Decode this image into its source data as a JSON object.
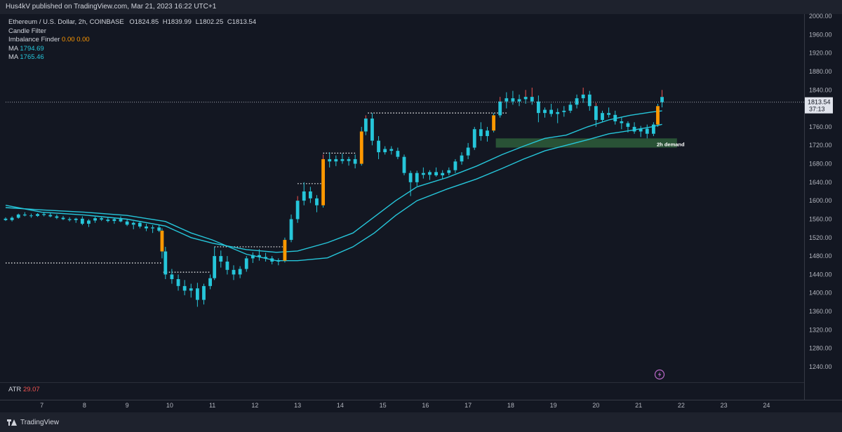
{
  "header": {
    "publish_line": "Hus4kV published on TradingView.com, Mar 21, 2023 16:22 UTC+1"
  },
  "legend": {
    "symbol": "Ethereum / U.S. Dollar, 2h, COINBASE",
    "ohlc": {
      "o_label": "O",
      "o": "1824.85",
      "h_label": "H",
      "h": "1839.99",
      "l_label": "L",
      "l": "1802.25",
      "c_label": "C",
      "c": "1813.54"
    },
    "candle_filter": "Candle Filter",
    "imbalance_finder": {
      "label": "Imbalance Finder",
      "v1": "0.00",
      "v2": "0.00"
    },
    "ma1": {
      "label": "MA",
      "value": "1794.69"
    },
    "ma2": {
      "label": "MA",
      "value": "1765.46"
    }
  },
  "atr": {
    "label": "ATR",
    "value": "29.07"
  },
  "price_tag": {
    "price": "1813.54",
    "countdown": "37:13"
  },
  "zone_label": "2h demand",
  "footer": {
    "brand": "TradingView"
  },
  "colors": {
    "up": "#26c6da",
    "down": "#26c6da",
    "wick_up": "#26c6da",
    "red_wick": "#ef5350",
    "filter": "#ff9800",
    "ma": "#26c6da",
    "zone": "#2e5d3a",
    "bg": "#131722"
  },
  "icons": {
    "alert": "lightning-icon"
  },
  "chart_data": {
    "type": "candlestick",
    "y_ticks": [
      1240,
      1280,
      1320,
      1360,
      1400,
      1440,
      1480,
      1520,
      1560,
      1600,
      1640,
      1680,
      1720,
      1760,
      1800,
      1840,
      1880,
      1920,
      1960,
      2000
    ],
    "y_range": [
      1205,
      2005
    ],
    "x_ticks": [
      "7",
      "8",
      "9",
      "10",
      "11",
      "12",
      "13",
      "14",
      "15",
      "16",
      "17",
      "18",
      "19",
      "20",
      "21",
      "22",
      "23",
      "24"
    ],
    "x_range": [
      6.15,
      25.0
    ],
    "last_price": 1813.54,
    "demand_zone": {
      "label": "2h demand",
      "x_start": 17.65,
      "x_end": 21.9,
      "y_low": 1715,
      "y_high": 1735
    },
    "imbalance_lines": [
      {
        "x_start": 6.15,
        "x_end": 9.8,
        "y": 1465
      },
      {
        "x_start": 9.85,
        "x_end": 10.95,
        "y": 1445
      },
      {
        "x_start": 11.05,
        "x_end": 12.65,
        "y": 1500
      },
      {
        "x_start": 13.0,
        "x_end": 13.55,
        "y": 1637
      },
      {
        "x_start": 13.6,
        "x_end": 14.35,
        "y": 1703
      },
      {
        "x_start": 14.65,
        "x_end": 17.9,
        "y": 1790
      }
    ],
    "ma_fast": [
      [
        6.15,
        1590
      ],
      [
        7,
        1575
      ],
      [
        8,
        1569
      ],
      [
        9,
        1560
      ],
      [
        9.9,
        1545
      ],
      [
        10.5,
        1520
      ],
      [
        11,
        1508
      ],
      [
        11.8,
        1494
      ],
      [
        12.5,
        1488
      ],
      [
        13,
        1491
      ],
      [
        13.7,
        1509
      ],
      [
        14.3,
        1530
      ],
      [
        14.8,
        1565
      ],
      [
        15.3,
        1600
      ],
      [
        15.8,
        1630
      ],
      [
        16.5,
        1650
      ],
      [
        17.2,
        1675
      ],
      [
        17.8,
        1700
      ],
      [
        18.3,
        1718
      ],
      [
        18.8,
        1735
      ],
      [
        19.3,
        1742
      ],
      [
        19.8,
        1760
      ],
      [
        20.3,
        1775
      ],
      [
        20.8,
        1785
      ],
      [
        21.3,
        1792
      ],
      [
        21.55,
        1794.69
      ]
    ],
    "ma_slow": [
      [
        6.15,
        1585
      ],
      [
        7,
        1580
      ],
      [
        8,
        1575
      ],
      [
        9,
        1568
      ],
      [
        9.9,
        1555
      ],
      [
        10.5,
        1530
      ],
      [
        11,
        1515
      ],
      [
        11.8,
        1484
      ],
      [
        12.5,
        1470
      ],
      [
        13,
        1470
      ],
      [
        13.7,
        1476
      ],
      [
        14.3,
        1500
      ],
      [
        14.8,
        1530
      ],
      [
        15.3,
        1568
      ],
      [
        15.8,
        1600
      ],
      [
        16.5,
        1625
      ],
      [
        17.2,
        1647
      ],
      [
        17.8,
        1670
      ],
      [
        18.3,
        1690
      ],
      [
        18.8,
        1708
      ],
      [
        19.3,
        1720
      ],
      [
        19.8,
        1732
      ],
      [
        20.3,
        1745
      ],
      [
        20.8,
        1752
      ],
      [
        21.3,
        1760
      ],
      [
        21.55,
        1765.46
      ]
    ],
    "candles": [
      [
        6.15,
        1561,
        1564,
        1556,
        1558
      ],
      [
        6.3,
        1558,
        1566,
        1555,
        1563
      ],
      [
        6.45,
        1563,
        1572,
        1561,
        1570
      ],
      [
        6.6,
        1570,
        1575,
        1566,
        1568
      ],
      [
        6.75,
        1568,
        1572,
        1563,
        1567
      ],
      [
        6.9,
        1567,
        1573,
        1565,
        1571
      ],
      [
        7.05,
        1571,
        1574,
        1566,
        1569
      ],
      [
        7.2,
        1569,
        1573,
        1564,
        1566
      ],
      [
        7.35,
        1566,
        1570,
        1560,
        1563
      ],
      [
        7.5,
        1563,
        1567,
        1558,
        1560
      ],
      [
        7.65,
        1560,
        1564,
        1555,
        1558
      ],
      [
        7.8,
        1558,
        1563,
        1552,
        1561
      ],
      [
        7.95,
        1561,
        1566,
        1547,
        1550
      ],
      [
        8.1,
        1550,
        1560,
        1543,
        1557
      ],
      [
        8.25,
        1557,
        1565,
        1552,
        1562
      ],
      [
        8.4,
        1562,
        1566,
        1556,
        1559
      ],
      [
        8.55,
        1559,
        1563,
        1553,
        1556
      ],
      [
        8.7,
        1556,
        1562,
        1550,
        1560
      ],
      [
        8.85,
        1560,
        1566,
        1553,
        1555
      ],
      [
        9.0,
        1555,
        1560,
        1545,
        1548
      ],
      [
        9.15,
        1548,
        1555,
        1538,
        1552
      ],
      [
        9.3,
        1552,
        1556,
        1540,
        1544
      ],
      [
        9.45,
        1544,
        1550,
        1534,
        1540
      ],
      [
        9.6,
        1540,
        1547,
        1530,
        1542
      ],
      [
        9.75,
        1542,
        1548,
        1532,
        1535
      ],
      [
        9.82,
        1535,
        1540,
        1475,
        1490
      ],
      [
        9.9,
        1490,
        1500,
        1430,
        1440
      ],
      [
        10.05,
        1440,
        1452,
        1420,
        1430
      ],
      [
        10.2,
        1430,
        1440,
        1405,
        1415
      ],
      [
        10.35,
        1415,
        1428,
        1395,
        1405
      ],
      [
        10.5,
        1405,
        1420,
        1390,
        1410
      ],
      [
        10.65,
        1410,
        1422,
        1370,
        1385
      ],
      [
        10.8,
        1385,
        1420,
        1375,
        1415
      ],
      [
        10.95,
        1415,
        1440,
        1408,
        1432
      ],
      [
        11.05,
        1432,
        1500,
        1428,
        1480
      ],
      [
        11.2,
        1480,
        1492,
        1455,
        1468
      ],
      [
        11.35,
        1468,
        1480,
        1440,
        1450
      ],
      [
        11.5,
        1450,
        1460,
        1428,
        1440
      ],
      [
        11.65,
        1440,
        1458,
        1432,
        1452
      ],
      [
        11.8,
        1452,
        1480,
        1446,
        1475
      ],
      [
        11.95,
        1475,
        1488,
        1465,
        1482
      ],
      [
        12.1,
        1482,
        1495,
        1470,
        1478
      ],
      [
        12.25,
        1478,
        1487,
        1468,
        1475
      ],
      [
        12.4,
        1475,
        1480,
        1462,
        1468
      ],
      [
        12.55,
        1468,
        1475,
        1460,
        1470
      ],
      [
        12.7,
        1470,
        1520,
        1466,
        1515
      ],
      [
        12.85,
        1515,
        1570,
        1510,
        1560
      ],
      [
        13.0,
        1560,
        1610,
        1552,
        1600
      ],
      [
        13.15,
        1600,
        1640,
        1590,
        1620
      ],
      [
        13.3,
        1620,
        1630,
        1595,
        1605
      ],
      [
        13.45,
        1605,
        1612,
        1575,
        1590
      ],
      [
        13.6,
        1590,
        1700,
        1585,
        1690
      ],
      [
        13.75,
        1690,
        1705,
        1672,
        1685
      ],
      [
        13.9,
        1685,
        1698,
        1675,
        1690
      ],
      [
        14.05,
        1690,
        1702,
        1680,
        1686
      ],
      [
        14.2,
        1686,
        1695,
        1676,
        1690
      ],
      [
        14.35,
        1690,
        1700,
        1670,
        1680
      ],
      [
        14.5,
        1680,
        1760,
        1676,
        1750
      ],
      [
        14.6,
        1750,
        1785,
        1742,
        1778
      ],
      [
        14.75,
        1778,
        1790,
        1720,
        1730
      ],
      [
        14.9,
        1730,
        1740,
        1690,
        1705
      ],
      [
        15.05,
        1705,
        1718,
        1700,
        1712
      ],
      [
        15.2,
        1712,
        1718,
        1700,
        1708
      ],
      [
        15.35,
        1708,
        1715,
        1690,
        1695
      ],
      [
        15.5,
        1695,
        1700,
        1655,
        1660
      ],
      [
        15.65,
        1660,
        1665,
        1610,
        1640
      ],
      [
        15.8,
        1640,
        1665,
        1632,
        1660
      ],
      [
        15.95,
        1660,
        1672,
        1648,
        1656
      ],
      [
        16.1,
        1656,
        1666,
        1645,
        1662
      ],
      [
        16.25,
        1662,
        1672,
        1652,
        1655
      ],
      [
        16.4,
        1655,
        1666,
        1646,
        1660
      ],
      [
        16.55,
        1660,
        1672,
        1655,
        1666
      ],
      [
        16.7,
        1666,
        1690,
        1660,
        1685
      ],
      [
        16.85,
        1685,
        1705,
        1678,
        1698
      ],
      [
        17.0,
        1698,
        1725,
        1690,
        1715
      ],
      [
        17.15,
        1715,
        1760,
        1710,
        1755
      ],
      [
        17.3,
        1755,
        1770,
        1730,
        1740
      ],
      [
        17.45,
        1740,
        1760,
        1728,
        1752
      ],
      [
        17.6,
        1752,
        1790,
        1748,
        1785
      ],
      [
        17.75,
        1785,
        1825,
        1780,
        1815
      ],
      [
        17.9,
        1815,
        1835,
        1800,
        1822
      ],
      [
        18.05,
        1822,
        1838,
        1808,
        1815
      ],
      [
        18.2,
        1815,
        1830,
        1805,
        1820
      ],
      [
        18.35,
        1820,
        1840,
        1810,
        1825
      ],
      [
        18.5,
        1825,
        1845,
        1808,
        1815
      ],
      [
        18.65,
        1815,
        1828,
        1770,
        1790
      ],
      [
        18.8,
        1790,
        1802,
        1780,
        1797
      ],
      [
        18.95,
        1797,
        1810,
        1782,
        1788
      ],
      [
        19.1,
        1788,
        1800,
        1768,
        1792
      ],
      [
        19.25,
        1792,
        1805,
        1782,
        1795
      ],
      [
        19.4,
        1795,
        1815,
        1790,
        1808
      ],
      [
        19.55,
        1808,
        1830,
        1800,
        1822
      ],
      [
        19.7,
        1822,
        1845,
        1812,
        1830
      ],
      [
        19.85,
        1830,
        1838,
        1795,
        1805
      ],
      [
        20.0,
        1805,
        1812,
        1760,
        1775
      ],
      [
        20.15,
        1775,
        1795,
        1770,
        1790
      ],
      [
        20.3,
        1790,
        1802,
        1780,
        1786
      ],
      [
        20.45,
        1786,
        1795,
        1765,
        1772
      ],
      [
        20.6,
        1772,
        1780,
        1755,
        1768
      ],
      [
        20.75,
        1768,
        1772,
        1748,
        1760
      ],
      [
        20.9,
        1760,
        1770,
        1745,
        1750
      ],
      [
        21.05,
        1750,
        1762,
        1738,
        1756
      ],
      [
        21.2,
        1756,
        1765,
        1735,
        1745
      ],
      [
        21.35,
        1745,
        1770,
        1740,
        1765
      ],
      [
        21.45,
        1765,
        1810,
        1760,
        1805
      ],
      [
        21.55,
        1824.85,
        1839.99,
        1802.25,
        1813.54
      ]
    ],
    "filter_candles": [
      9.82,
      12.7,
      13.6,
      14.5,
      17.6,
      21.45
    ],
    "red_wick_candles": [
      13.0,
      13.6,
      14.6,
      17.75,
      18.35,
      18.5,
      19.7,
      20.0,
      21.55
    ]
  }
}
